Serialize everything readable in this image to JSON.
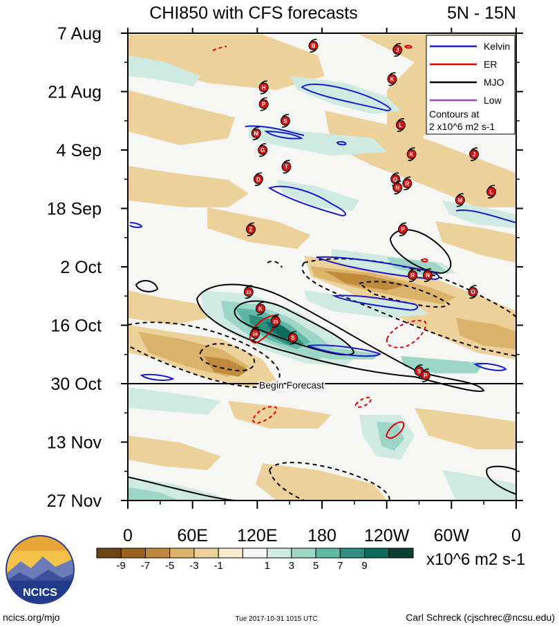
{
  "chart_data": {
    "type": "heatmap",
    "title": "CHI850 with CFS forecasts",
    "region_label": "5N - 15N",
    "x_ticks": [
      "0",
      "60E",
      "120E",
      "180",
      "120W",
      "60W",
      "0"
    ],
    "x_tick_values": [
      0,
      60,
      120,
      180,
      240,
      300,
      360
    ],
    "xlim": [
      0,
      360
    ],
    "y_ticks": [
      "7 Aug",
      "21 Aug",
      "4 Sep",
      "18 Sep",
      "2 Oct",
      "16 Oct",
      "30 Oct",
      "13 Nov",
      "27 Nov"
    ],
    "y_tick_values": [
      "2017-08-07",
      "2017-08-21",
      "2017-09-04",
      "2017-09-18",
      "2017-10-02",
      "2017-10-16",
      "2017-10-30",
      "2017-11-13",
      "2017-11-27"
    ],
    "ylim": [
      "2017-08-07",
      "2017-11-27"
    ],
    "forecast_start": "2017-10-30",
    "forecast_label": "Begin Forecast",
    "colorbar": {
      "unit_label": "x10^6 m2 s-1",
      "tick_labels": [
        "-9",
        "-7",
        "-5",
        "-3",
        "-1",
        "1",
        "3",
        "5",
        "7",
        "9"
      ],
      "colors": [
        "#6e4412",
        "#9a6320",
        "#c08a3c",
        "#dbb36a",
        "#ecd19a",
        "#f7ecce",
        "#f6f6f4",
        "#cfeae0",
        "#9dd5c6",
        "#5fb8a5",
        "#2e8f7f",
        "#0d6a5d",
        "#0a3d33"
      ]
    },
    "legend": {
      "placement": "top-right",
      "entries": [
        {
          "name": "Kelvin",
          "color": "#1a1acd"
        },
        {
          "name": "ER",
          "color": "#e00000"
        },
        {
          "name": "MJO",
          "color": "#000000"
        },
        {
          "name": "Low",
          "color": "#a040c0"
        }
      ],
      "note_line1": "Contours at",
      "note_line2": "2 x10^6 m2 s-1"
    },
    "storms": [
      {
        "label": "B",
        "lon": 172,
        "date": "2017-08-10"
      },
      {
        "label": "J",
        "lon": 250,
        "date": "2017-08-11"
      },
      {
        "label": "K",
        "lon": 245,
        "date": "2017-08-18"
      },
      {
        "label": "H",
        "lon": 126,
        "date": "2017-08-20"
      },
      {
        "label": "P",
        "lon": 126,
        "date": "2017-08-24"
      },
      {
        "label": "S",
        "lon": 146,
        "date": "2017-08-28"
      },
      {
        "label": "L",
        "lon": 253,
        "date": "2017-08-29"
      },
      {
        "label": "M",
        "lon": 119,
        "date": "2017-08-31"
      },
      {
        "label": "G",
        "lon": 125,
        "date": "2017-09-04"
      },
      {
        "label": "K",
        "lon": 263,
        "date": "2017-09-05"
      },
      {
        "label": "J",
        "lon": 321,
        "date": "2017-09-05"
      },
      {
        "label": "T",
        "lon": 147,
        "date": "2017-09-08"
      },
      {
        "label": "D",
        "lon": 121,
        "date": "2017-09-11"
      },
      {
        "label": "Q",
        "lon": 248,
        "date": "2017-09-11"
      },
      {
        "label": "R",
        "lon": 259,
        "date": "2017-09-12"
      },
      {
        "label": "N",
        "lon": 250,
        "date": "2017-09-13"
      },
      {
        "label": "L",
        "lon": 337,
        "date": "2017-09-14"
      },
      {
        "label": "M",
        "lon": 308,
        "date": "2017-09-16"
      },
      {
        "label": "Z",
        "lon": 114,
        "date": "2017-09-23"
      },
      {
        "label": "P",
        "lon": 255,
        "date": "2017-09-23"
      },
      {
        "label": "R",
        "lon": 264,
        "date": "2017-10-04"
      },
      {
        "label": "N",
        "lon": 278,
        "date": "2017-10-04"
      },
      {
        "label": "23",
        "lon": 112,
        "date": "2017-10-08"
      },
      {
        "label": "O",
        "lon": 320,
        "date": "2017-10-08"
      },
      {
        "label": "K",
        "lon": 123,
        "date": "2017-10-12"
      },
      {
        "label": "25",
        "lon": 137,
        "date": "2017-10-15"
      },
      {
        "label": "28",
        "lon": 118,
        "date": "2017-10-18"
      },
      {
        "label": "S",
        "lon": 153,
        "date": "2017-10-19"
      },
      {
        "label": "S",
        "lon": 270,
        "date": "2017-10-27"
      },
      {
        "label": "P",
        "lon": 276,
        "date": "2017-10-28"
      }
    ],
    "grid": false
  },
  "footer": {
    "site": "ncics.org/mjo",
    "timestamp": "Tue 2017-10-31 1015 UTC",
    "author": "Carl Schreck (cjschrec@ncsu.edu)",
    "logo_text": "NCICS"
  }
}
